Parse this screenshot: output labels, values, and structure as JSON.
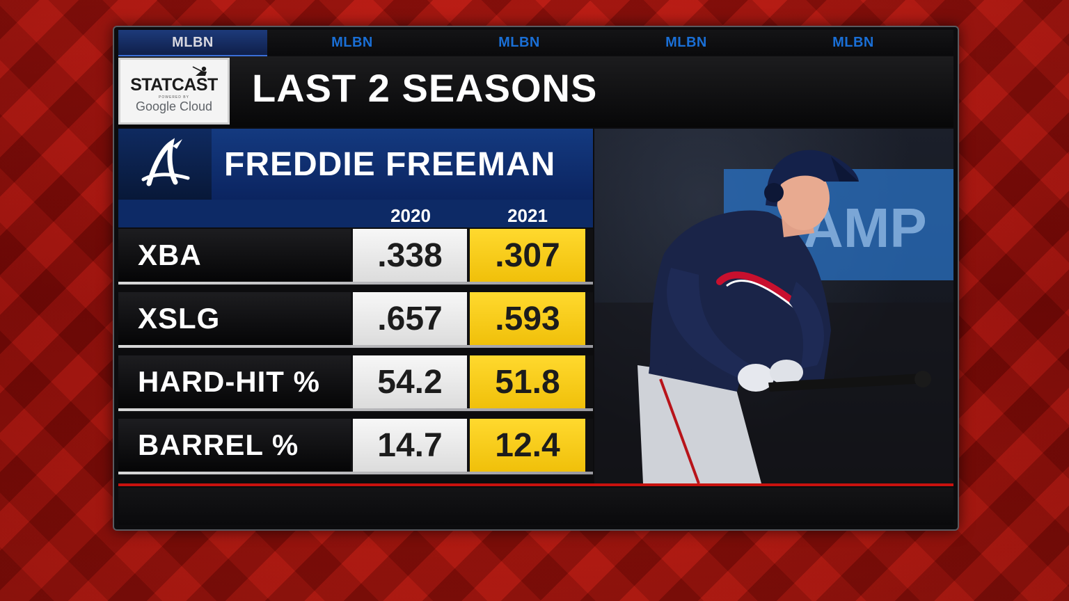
{
  "network_tabs": [
    "MLBN",
    "MLBN",
    "MLBN",
    "MLBN",
    "MLBN"
  ],
  "sponsor": {
    "brand": "STATCAST",
    "powered_by": "POWERED BY",
    "cloud": "Google Cloud"
  },
  "title": "LAST 2 SEASONS",
  "player": {
    "name": "FREDDIE FREEMAN",
    "team_logo_letter": "A",
    "photo_sign_text": "AMP"
  },
  "columns": [
    "2020",
    "2021"
  ],
  "rows": [
    {
      "label": "XBA",
      "v2020": ".338",
      "v2021": ".307"
    },
    {
      "label": "XSLG",
      "v2020": ".657",
      "v2021": ".593"
    },
    {
      "label": "HARD-HIT %",
      "v2020": "54.2",
      "v2021": "51.8"
    },
    {
      "label": "BARREL %",
      "v2020": "14.7",
      "v2021": "12.4"
    }
  ],
  "colors": {
    "highlight": "#f5c80f",
    "navy": "#0d2a66",
    "background_red": "#c8180f"
  }
}
